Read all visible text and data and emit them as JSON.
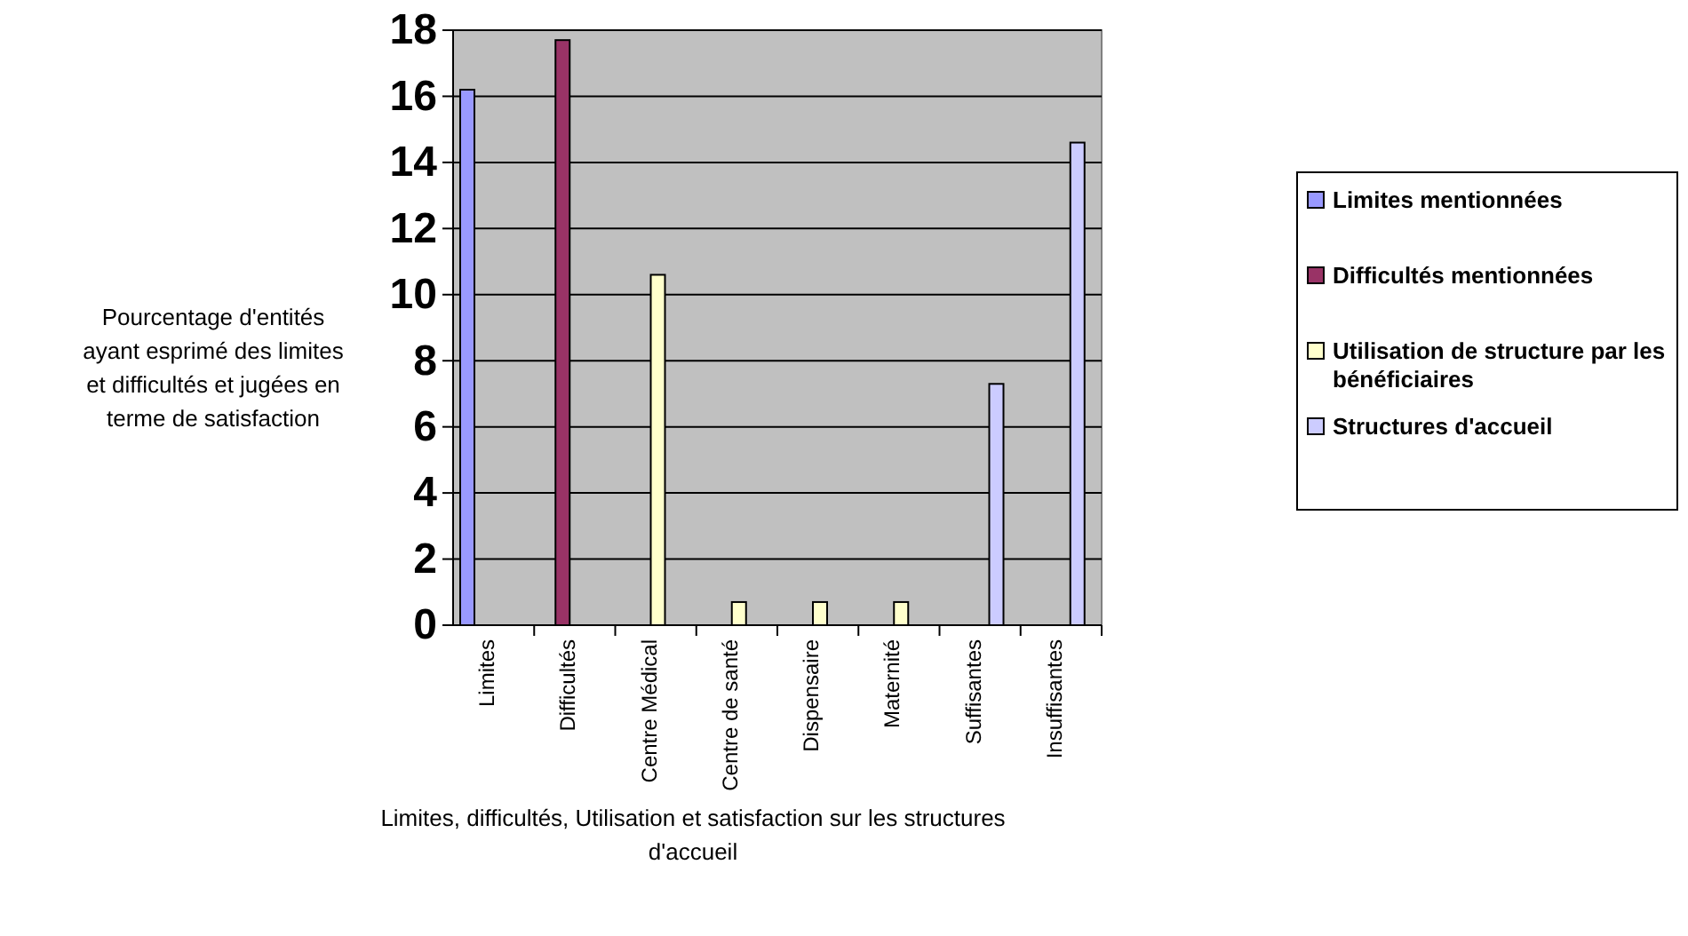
{
  "chart_data": {
    "type": "bar",
    "xlabel": "Limites, difficultés, Utilisation et satisfaction sur les structures d'accueil",
    "ylabel": "Pourcentage d'entités ayant esprimé des limites et difficultés et jugées en terme de satisfaction",
    "categories": [
      "Limites",
      "Difficultés",
      "Centre Médical",
      "Centre de santé",
      "Dispensaire",
      "Maternité",
      "Suffisantes",
      "Insuffisantes"
    ],
    "series": [
      {
        "name": "Limites mentionnées",
        "color": "#9999ff",
        "values": [
          16.2,
          null,
          null,
          null,
          null,
          null,
          null,
          null
        ]
      },
      {
        "name": "Difficultés mentionnées",
        "color": "#993366",
        "values": [
          null,
          17.7,
          null,
          null,
          null,
          null,
          null,
          null
        ]
      },
      {
        "name": "Utilisation de structure par les bénéficiaires",
        "color": "#ffffcc",
        "values": [
          null,
          null,
          10.6,
          0.7,
          0.7,
          0.7,
          null,
          null
        ]
      },
      {
        "name": "Structures d'accueil",
        "color": "#ccccff",
        "values": [
          null,
          null,
          null,
          null,
          null,
          null,
          7.3,
          14.6
        ]
      }
    ],
    "ylim": [
      0,
      18
    ],
    "yticks": [
      0,
      2,
      4,
      6,
      8,
      10,
      12,
      14,
      16,
      18
    ],
    "grid": "y",
    "legend": "right"
  }
}
